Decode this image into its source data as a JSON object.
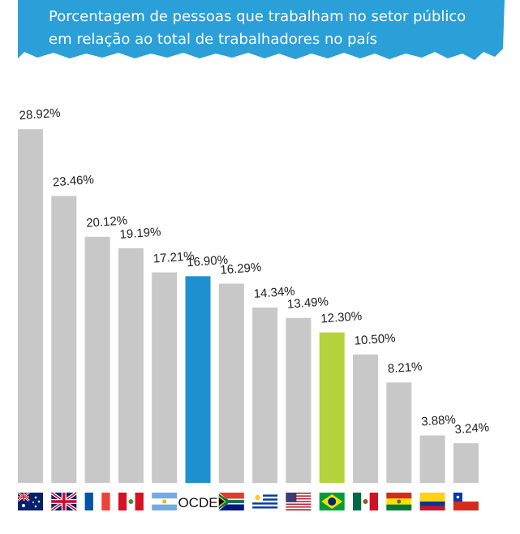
{
  "title_line1": "Porcentagem de pessoas que trabalham no setor público",
  "title_line2": "em relação ao total de trabalhadores no país",
  "colors": {
    "banner": "#2a9fd8",
    "default_bar": "#c8c8c8",
    "ocde_bar": "#1e90d0",
    "brazil_bar": "#b5d33d"
  },
  "chart_data": {
    "type": "bar",
    "title": "Porcentagem de pessoas que trabalham no setor público em relação ao total de trabalhadores no país",
    "categories": [
      "australia-flag",
      "uk-flag",
      "france-flag",
      "peru-flag",
      "argentina-flag",
      "OCDE",
      "south-africa-flag",
      "uruguay-flag",
      "usa-flag",
      "brazil-flag",
      "mexico-flag",
      "bolivia-flag",
      "colombia-flag",
      "chile-flag"
    ],
    "values": [
      28.92,
      23.46,
      20.12,
      19.19,
      17.21,
      16.9,
      16.29,
      14.34,
      13.49,
      12.3,
      10.5,
      8.21,
      3.88,
      3.24
    ],
    "value_labels": [
      "28.92%",
      "23.46%",
      "20.12%",
      "19.19%",
      "17.21%",
      "16.90%",
      "16.29%",
      "14.34%",
      "13.49%",
      "12.30%",
      "10.50%",
      "8.21%",
      "3.88%",
      "3.24%"
    ],
    "highlight": {
      "OCDE": "#1e90d0",
      "brazil-flag": "#b5d33d"
    },
    "ylim": [
      0,
      29
    ],
    "grid": false,
    "xlabel": "",
    "ylabel": ""
  }
}
